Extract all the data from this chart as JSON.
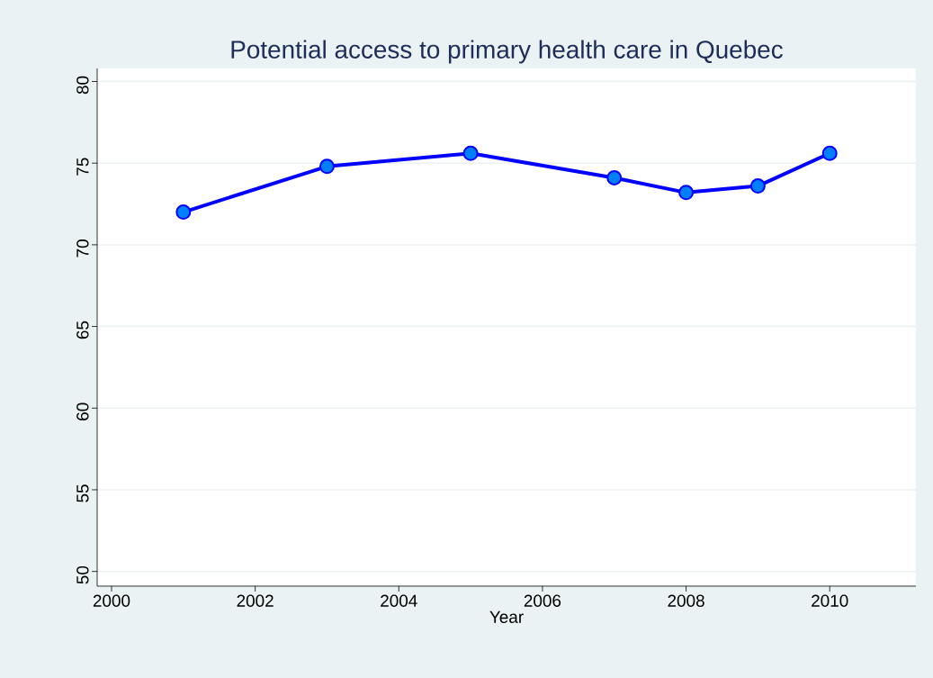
{
  "chart_data": {
    "type": "line",
    "title": "Potential access to primary health care in Quebec",
    "xlabel": "Year",
    "x": [
      2001,
      2003,
      2005,
      2007,
      2008,
      2009,
      2010
    ],
    "series": [
      {
        "color": "#0000ff",
        "values": [
          72.0,
          74.8,
          75.6,
          74.1,
          73.2,
          73.6,
          75.6
        ]
      }
    ],
    "xlim": [
      1999.8,
      2011.2
    ],
    "ylim": [
      49.1,
      80.8
    ],
    "xticks": [
      2000,
      2002,
      2004,
      2006,
      2008,
      2010
    ],
    "yticks": [
      50,
      55,
      60,
      65,
      70,
      75,
      80
    ],
    "grid": "y",
    "marker": "circle",
    "line_style": "solid"
  }
}
